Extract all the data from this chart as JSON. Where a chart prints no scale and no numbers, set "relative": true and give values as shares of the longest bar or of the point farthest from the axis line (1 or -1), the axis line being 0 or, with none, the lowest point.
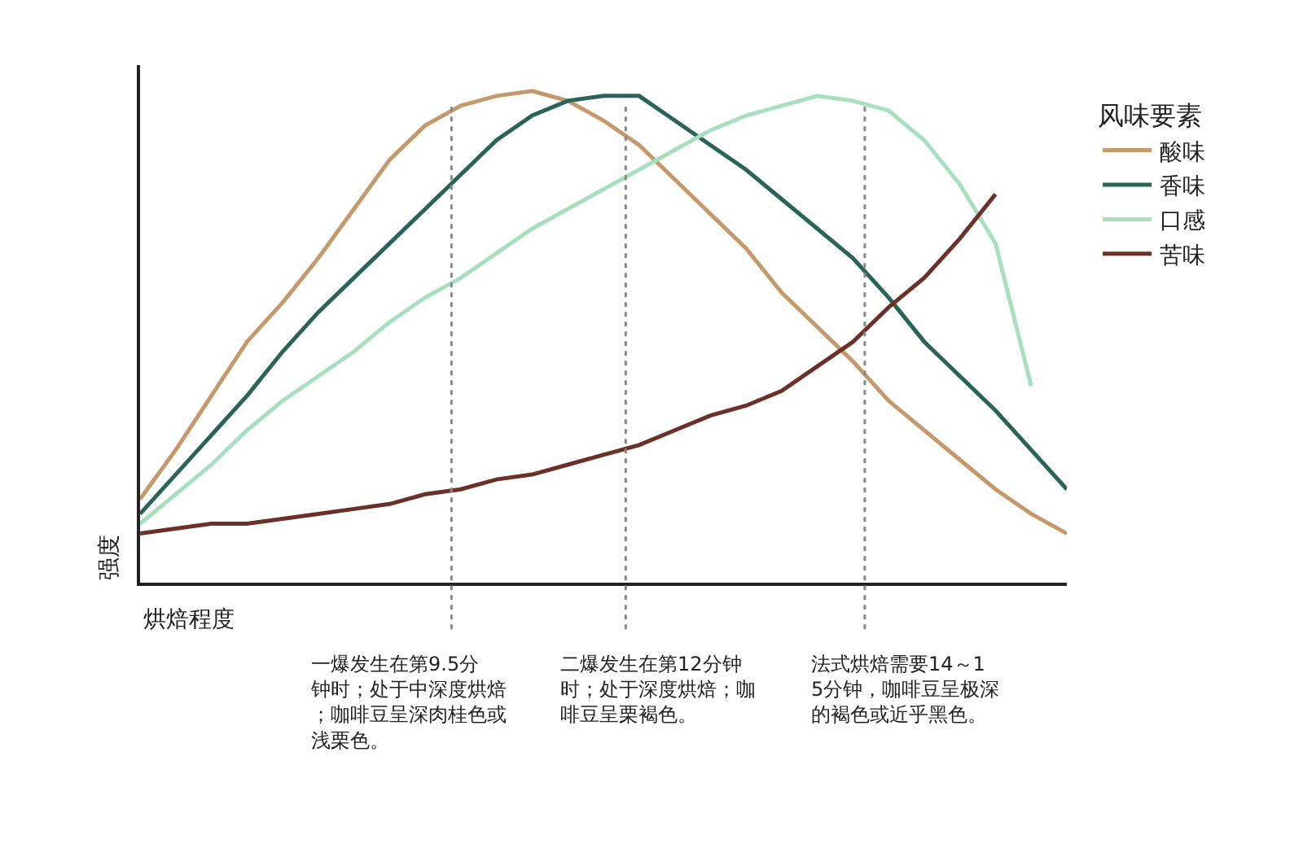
{
  "chart_data": {
    "type": "line",
    "relative": true,
    "xlabel": "烘焙程度",
    "ylabel": "强度",
    "legend_title": "风味要素",
    "legend": "right",
    "grid": false,
    "line_style": "solid",
    "categories": [
      null,
      null,
      null,
      null,
      null,
      null,
      null,
      null,
      null,
      null,
      null,
      null,
      null,
      null,
      null,
      null,
      null,
      null,
      null,
      null,
      null,
      null,
      null,
      null,
      null,
      null,
      null
    ],
    "series": [
      {
        "name": "酸味",
        "color": "#c49a6c",
        "values": [
          0.17,
          0.27,
          0.38,
          0.49,
          0.57,
          0.66,
          0.76,
          0.86,
          0.93,
          0.97,
          0.99,
          1.0,
          0.98,
          0.94,
          0.89,
          0.82,
          0.75,
          0.68,
          0.59,
          0.52,
          0.45,
          0.37,
          0.31,
          0.25,
          0.19,
          0.14,
          0.1
        ]
      },
      {
        "name": "香味",
        "color": "#2a6358",
        "values": [
          0.14,
          0.22,
          0.3,
          0.38,
          0.47,
          0.55,
          0.62,
          0.69,
          0.76,
          0.83,
          0.9,
          0.95,
          0.98,
          0.99,
          0.99,
          0.94,
          0.89,
          0.84,
          0.78,
          0.72,
          0.66,
          0.58,
          0.49,
          0.42,
          0.35,
          0.27,
          0.19
        ]
      },
      {
        "name": "口感",
        "color": "#a8dfbe",
        "values": [
          0.12,
          0.18,
          0.24,
          0.31,
          0.37,
          0.42,
          0.47,
          0.53,
          0.58,
          0.62,
          0.67,
          0.72,
          0.76,
          0.8,
          0.84,
          0.88,
          0.92,
          0.95,
          0.97,
          0.99,
          0.98,
          0.96,
          0.9,
          0.81,
          0.69,
          0.4,
          null
        ]
      },
      {
        "name": "苦味",
        "color": "#6b3129",
        "values": [
          0.1,
          0.11,
          0.12,
          0.12,
          0.13,
          0.14,
          0.15,
          0.16,
          0.18,
          0.19,
          0.21,
          0.22,
          0.24,
          0.26,
          0.28,
          0.31,
          0.34,
          0.36,
          0.39,
          0.44,
          0.49,
          0.56,
          0.62,
          0.7,
          0.79,
          null,
          null
        ]
      }
    ],
    "annotations": [
      "一爆发生在第9.5分钟时；处于中深度烘焙；咖啡豆呈深肉桂色或浅栗色。",
      "二爆发生在第12分钟时；处于深度烘焙；咖啡豆呈栗褐色。",
      "法式烘焙需要14～15分钟，咖啡豆呈极深的褐色或近乎黑色。"
    ]
  }
}
